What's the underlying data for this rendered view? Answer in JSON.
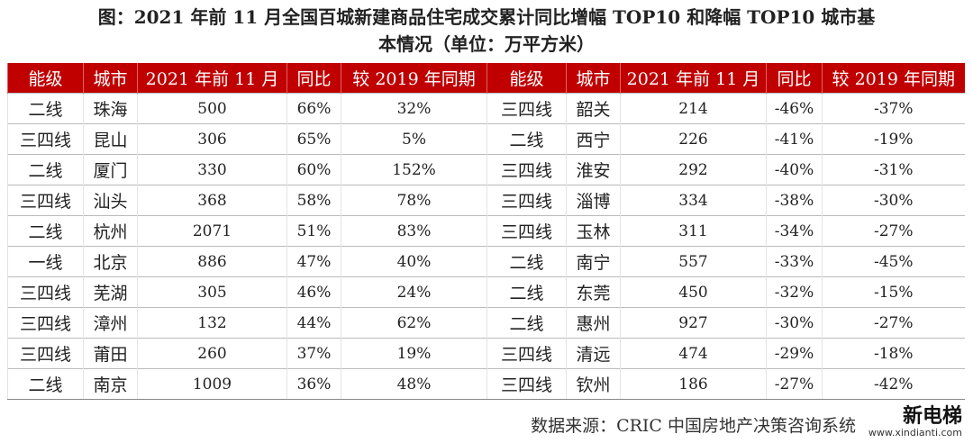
{
  "header": {
    "title_lines": [
      "图：2021 年前 11 月全国百城新建商品住宅成交累计同比增幅 TOP10 和降幅 TOP10 城市基",
      "本情况（单位：万平方米）"
    ]
  },
  "table": {
    "columns": [
      "能级",
      "城市",
      "2021 年前 11 月",
      "同比",
      "较 2019 年同期",
      "能级",
      "城市",
      "2021 年前 11 月",
      "同比",
      "较 2019 年同期"
    ],
    "rows": [
      [
        "二线",
        "珠海",
        "500",
        "66%",
        "32%",
        "三四线",
        "韶关",
        "214",
        "-46%",
        "-37%"
      ],
      [
        "三四线",
        "昆山",
        "306",
        "65%",
        "5%",
        "二线",
        "西宁",
        "226",
        "-41%",
        "-19%"
      ],
      [
        "二线",
        "厦门",
        "330",
        "60%",
        "152%",
        "三四线",
        "淮安",
        "292",
        "-40%",
        "-31%"
      ],
      [
        "三四线",
        "汕头",
        "368",
        "58%",
        "78%",
        "三四线",
        "淄博",
        "334",
        "-38%",
        "-30%"
      ],
      [
        "二线",
        "杭州",
        "2071",
        "51%",
        "83%",
        "三四线",
        "玉林",
        "311",
        "-34%",
        "-27%"
      ],
      [
        "一线",
        "北京",
        "886",
        "47%",
        "40%",
        "二线",
        "南宁",
        "557",
        "-33%",
        "-45%"
      ],
      [
        "三四线",
        "芜湖",
        "305",
        "46%",
        "24%",
        "二线",
        "东莞",
        "450",
        "-32%",
        "-15%"
      ],
      [
        "三四线",
        "漳州",
        "132",
        "44%",
        "62%",
        "二线",
        "惠州",
        "927",
        "-30%",
        "-27%"
      ],
      [
        "三四线",
        "莆田",
        "260",
        "37%",
        "19%",
        "三四线",
        "清远",
        "474",
        "-29%",
        "-18%"
      ],
      [
        "二线",
        "南京",
        "1009",
        "36%",
        "48%",
        "三四线",
        "钦州",
        "186",
        "-27%",
        "-42%"
      ]
    ]
  },
  "footer": {
    "source": "数据来源：CRIC 中国房地产决策咨询系统",
    "logo": "新电梯",
    "logo_url": "www.xindianti.com"
  }
}
